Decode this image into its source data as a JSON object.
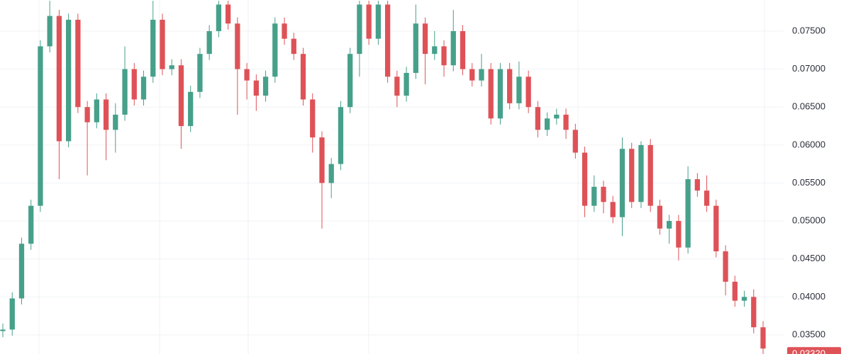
{
  "chart_data": {
    "type": "candlestick",
    "up_color": "#46a08a",
    "down_color": "#de5257",
    "ylim": [
      0.03248,
      0.0791
    ],
    "yticks": [
      {
        "value": 0.035,
        "label": "0.03500"
      },
      {
        "value": 0.04,
        "label": "0.04000"
      },
      {
        "value": 0.045,
        "label": "0.04500"
      },
      {
        "value": 0.05,
        "label": "0.05000"
      },
      {
        "value": 0.055,
        "label": "0.05500"
      },
      {
        "value": 0.06,
        "label": "0.06000"
      },
      {
        "value": 0.065,
        "label": "0.06500"
      },
      {
        "value": 0.07,
        "label": "0.07000"
      },
      {
        "value": 0.075,
        "label": "0.07500"
      }
    ],
    "grid": true,
    "last_price": {
      "value": 0.0332,
      "label": "0.03320"
    },
    "open": [
      0.0355,
      0.0357,
      0.0398,
      0.047,
      0.052,
      0.073,
      0.077,
      0.0605,
      0.0765,
      0.065,
      0.063,
      0.066,
      0.062,
      0.064,
      0.07,
      0.066,
      0.069,
      0.0765,
      0.07,
      0.0705,
      0.0625,
      0.067,
      0.072,
      0.075,
      0.0785,
      0.076,
      0.07,
      0.0685,
      0.0665,
      0.069,
      0.076,
      0.074,
      0.072,
      0.066,
      0.061,
      0.055,
      0.0575,
      0.065,
      0.072,
      0.0785,
      0.074,
      0.0785,
      0.069,
      0.0665,
      0.0695,
      0.076,
      0.072,
      0.073,
      0.0705,
      0.075,
      0.07,
      0.0685,
      0.07,
      0.0635,
      0.07,
      0.0655,
      0.069,
      0.065,
      0.062,
      0.0635,
      0.064,
      0.062,
      0.059,
      0.052,
      0.0545,
      0.0525,
      0.0505,
      0.0595,
      0.0525,
      0.06,
      0.052,
      0.049,
      0.05,
      0.0465,
      0.0555,
      0.054,
      0.052,
      0.046,
      0.042,
      0.0395,
      0.04,
      0.036
    ],
    "high": [
      0.0365,
      0.0406,
      0.0478,
      0.0528,
      0.0738,
      0.079,
      0.0778,
      0.0773,
      0.0773,
      0.0658,
      0.0668,
      0.0668,
      0.0655,
      0.073,
      0.0708,
      0.0698,
      0.079,
      0.0773,
      0.0713,
      0.0713,
      0.0678,
      0.0728,
      0.0758,
      0.079,
      0.079,
      0.0768,
      0.0708,
      0.0693,
      0.0698,
      0.0768,
      0.0768,
      0.0748,
      0.0728,
      0.0668,
      0.0618,
      0.0583,
      0.0658,
      0.0728,
      0.079,
      0.079,
      0.079,
      0.079,
      0.0698,
      0.0703,
      0.0785,
      0.0768,
      0.075,
      0.0738,
      0.0778,
      0.0758,
      0.0708,
      0.072,
      0.0708,
      0.0708,
      0.0708,
      0.071,
      0.0698,
      0.0658,
      0.0643,
      0.0648,
      0.0648,
      0.0628,
      0.0598,
      0.056,
      0.0553,
      0.0533,
      0.061,
      0.0603,
      0.0605,
      0.0608,
      0.0528,
      0.0508,
      0.0508,
      0.0572,
      0.0563,
      0.056,
      0.0528,
      0.0468,
      0.0428,
      0.0408,
      0.041,
      0.0368
    ],
    "low": [
      0.0347,
      0.0349,
      0.039,
      0.0462,
      0.0512,
      0.0722,
      0.0555,
      0.0597,
      0.0642,
      0.056,
      0.0622,
      0.058,
      0.059,
      0.0632,
      0.0652,
      0.0652,
      0.0682,
      0.0692,
      0.0692,
      0.0595,
      0.0617,
      0.0662,
      0.0712,
      0.0742,
      0.0752,
      0.064,
      0.066,
      0.0645,
      0.0657,
      0.0682,
      0.0732,
      0.0712,
      0.0652,
      0.059,
      0.049,
      0.053,
      0.0567,
      0.0642,
      0.069,
      0.0732,
      0.0732,
      0.0682,
      0.065,
      0.0657,
      0.0687,
      0.068,
      0.0712,
      0.069,
      0.0697,
      0.0692,
      0.0677,
      0.0677,
      0.0627,
      0.0627,
      0.0647,
      0.0647,
      0.0642,
      0.061,
      0.0612,
      0.0627,
      0.0608,
      0.0582,
      0.0505,
      0.0512,
      0.051,
      0.0497,
      0.048,
      0.0517,
      0.0517,
      0.0512,
      0.0482,
      0.047,
      0.0448,
      0.0457,
      0.0532,
      0.0512,
      0.0452,
      0.0402,
      0.0387,
      0.0387,
      0.0352,
      0.0324
    ],
    "close": [
      0.0357,
      0.0398,
      0.047,
      0.052,
      0.073,
      0.077,
      0.0605,
      0.0765,
      0.065,
      0.063,
      0.066,
      0.062,
      0.064,
      0.07,
      0.066,
      0.069,
      0.0765,
      0.07,
      0.0705,
      0.0625,
      0.067,
      0.072,
      0.075,
      0.0785,
      0.076,
      0.07,
      0.0685,
      0.0665,
      0.069,
      0.076,
      0.074,
      0.072,
      0.066,
      0.061,
      0.055,
      0.0575,
      0.065,
      0.072,
      0.0785,
      0.074,
      0.0785,
      0.069,
      0.0665,
      0.0695,
      0.076,
      0.072,
      0.073,
      0.0705,
      0.075,
      0.07,
      0.0685,
      0.07,
      0.0635,
      0.07,
      0.0655,
      0.069,
      0.065,
      0.062,
      0.0635,
      0.064,
      0.062,
      0.059,
      0.052,
      0.0545,
      0.0525,
      0.0505,
      0.0595,
      0.0525,
      0.06,
      0.052,
      0.049,
      0.05,
      0.0465,
      0.0555,
      0.054,
      0.052,
      0.046,
      0.042,
      0.0395,
      0.04,
      0.036,
      0.0332
    ]
  }
}
